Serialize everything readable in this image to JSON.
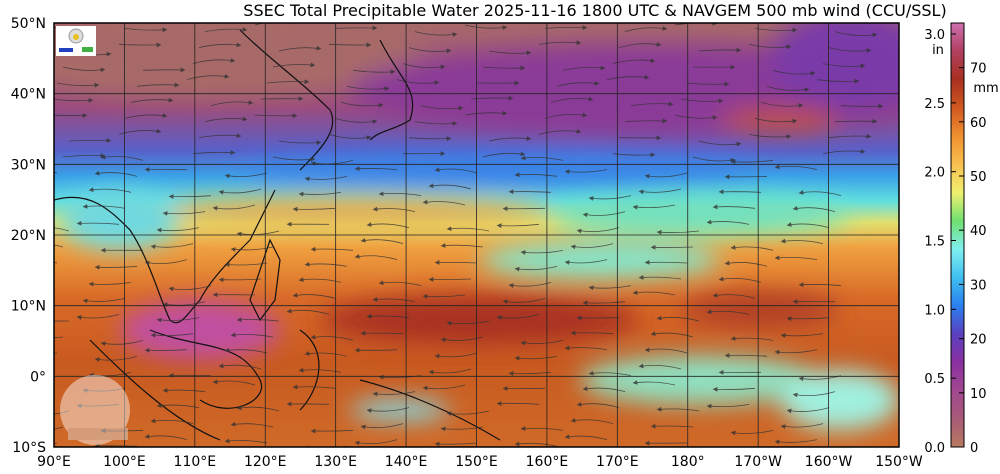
{
  "title": "SSEC Total Precipitable Water  2025-11-16 1800 UTC & NAVGEM 500 mb wind (CCU/SSL)",
  "lat_labels": [
    "50°N",
    "40°N",
    "30°N",
    "20°N",
    "10°N",
    "0°",
    "10°S"
  ],
  "lon_labels": [
    "90°E",
    "100°E",
    "110°E",
    "120°E",
    "130°E",
    "140°E",
    "150°E",
    "160°E",
    "170°E",
    "180°",
    "170°W",
    "160°W",
    "150°W"
  ],
  "colorbar": {
    "in_ticks": [
      "3.0",
      "2.5",
      "2.0",
      "1.5",
      "1.0",
      "0.5",
      "0.0"
    ],
    "in_unit": "in",
    "mm_ticks": [
      "70",
      "60",
      "50",
      "40",
      "30",
      "20",
      "10",
      "0"
    ],
    "mm_unit": "mm",
    "colors": [
      "#b87a60",
      "#a85a78",
      "#a04890",
      "#8a30a0",
      "#5a40c0",
      "#2a80f0",
      "#40c0f0",
      "#80f0f0",
      "#70e070",
      "#f0f070",
      "#f8c050",
      "#f09030",
      "#d05820",
      "#a83020",
      "#b04060",
      "#d070b0"
    ]
  },
  "logos": {
    "top_left": "SSL Lab",
    "bottom_left": "CIMSS"
  }
}
